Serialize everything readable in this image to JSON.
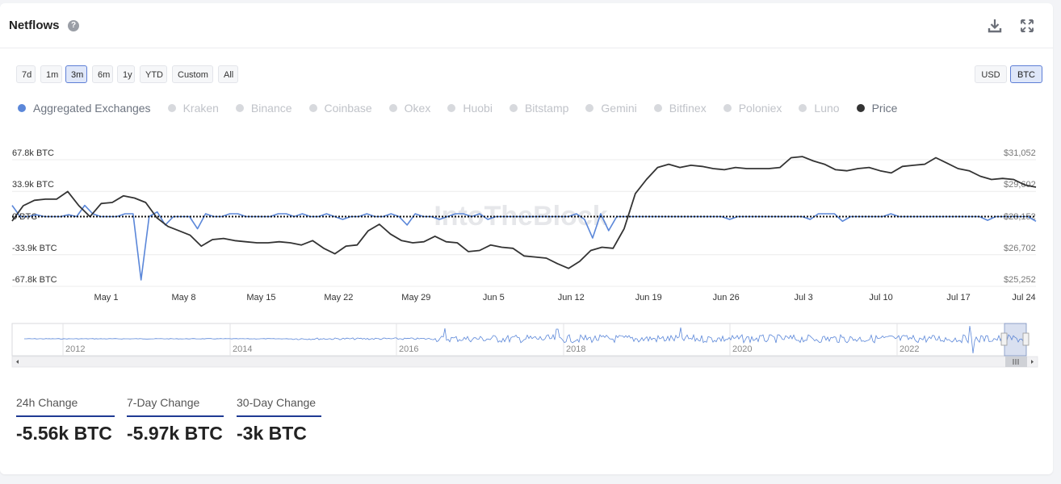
{
  "header": {
    "title": "Netflows",
    "help_icon": "question-circle-icon",
    "download_icon": "download-icon",
    "expand_icon": "expand-icon"
  },
  "range_buttons": [
    {
      "label": "7d",
      "active": false
    },
    {
      "label": "1m",
      "active": false
    },
    {
      "label": "3m",
      "active": true
    },
    {
      "label": "6m",
      "active": false
    },
    {
      "label": "1y",
      "active": false
    },
    {
      "label": "YTD",
      "active": false
    },
    {
      "label": "Custom",
      "active": false
    },
    {
      "label": "All",
      "active": false
    }
  ],
  "currency_buttons": [
    {
      "label": "USD",
      "active": false
    },
    {
      "label": "BTC",
      "active": true
    }
  ],
  "legend": [
    {
      "label": "Aggregated Exchanges",
      "state": "on-blue"
    },
    {
      "label": "Kraken",
      "state": "off"
    },
    {
      "label": "Binance",
      "state": "off"
    },
    {
      "label": "Coinbase",
      "state": "off"
    },
    {
      "label": "Okex",
      "state": "off"
    },
    {
      "label": "Huobi",
      "state": "off"
    },
    {
      "label": "Bitstamp",
      "state": "off"
    },
    {
      "label": "Gemini",
      "state": "off"
    },
    {
      "label": "Bitfinex",
      "state": "off"
    },
    {
      "label": "Poloniex",
      "state": "off"
    },
    {
      "label": "Luno",
      "state": "off"
    },
    {
      "label": "Price",
      "state": "on-dark"
    }
  ],
  "watermark": "IntoTheBlock",
  "chart_data": {
    "type": "line",
    "colors": {
      "netflow": "#5b87d9",
      "price": "#333333"
    },
    "left_axis": {
      "ticks": [
        "67.8k BTC",
        "33.9k BTC",
        "0 BTC",
        "-33.9k BTC",
        "-67.8k BTC"
      ],
      "values": [
        67800,
        33900,
        0,
        -33900,
        -67800
      ],
      "ylim": [
        -67800,
        67800
      ]
    },
    "right_axis": {
      "ticks": [
        "$31,052",
        "$29,602",
        "$28,152",
        "$26,702",
        "$25,252"
      ],
      "values": [
        31052,
        29602,
        28152,
        26702,
        25252
      ],
      "ylim": [
        25252,
        31052
      ]
    },
    "x_tick_labels": [
      "May 1",
      "May 8",
      "May 15",
      "May 22",
      "May 29",
      "Jun 5",
      "Jun 12",
      "Jun 19",
      "Jun 26",
      "Jul 3",
      "Jul 10",
      "Jul 17",
      "Jul 24"
    ],
    "x_tick_day": [
      8,
      15,
      22,
      29,
      36,
      43,
      50,
      57,
      64,
      71,
      78,
      85,
      92
    ],
    "x_range_day": [
      -0.5,
      92
    ],
    "zero_line": "dotted",
    "series": [
      {
        "name": "Aggregated Exchanges",
        "axis": "left",
        "values": [
          12000,
          0,
          0,
          2000,
          0,
          0,
          0,
          2000,
          0,
          12000,
          3000,
          0,
          0,
          0,
          3000,
          3000,
          -67800,
          0,
          5000,
          -9000,
          0,
          0,
          0,
          -13000,
          3000,
          0,
          0,
          3000,
          3000,
          0,
          0,
          0,
          0,
          3000,
          3000,
          0,
          3000,
          0,
          0,
          3000,
          0,
          -3000,
          0,
          0,
          3000,
          0,
          0,
          3000,
          0,
          -9000,
          3000,
          0,
          0,
          -3000,
          0,
          3000,
          3000,
          0,
          3000,
          -3000,
          0,
          0,
          0,
          0,
          0,
          0,
          0,
          0,
          0,
          0,
          3000,
          -3000,
          -23000,
          3000,
          -15000,
          0,
          0,
          0,
          0,
          0,
          0,
          0,
          0,
          0,
          0,
          0,
          0,
          0,
          0,
          -3000,
          0,
          0,
          0,
          0,
          0,
          0,
          0,
          0,
          0,
          -3000,
          3000,
          3000,
          3000,
          -5000,
          0,
          0,
          0,
          0,
          0,
          3000,
          0,
          0,
          0,
          0,
          0,
          0,
          0,
          0,
          0,
          0,
          0,
          -4000,
          0,
          0,
          0,
          0,
          0,
          -5000
        ]
      },
      {
        "name": "Price",
        "axis": "right",
        "values": [
          27950,
          28650,
          28900,
          28950,
          28950,
          29300,
          28650,
          28150,
          28750,
          28800,
          29100,
          29000,
          28800,
          28100,
          27700,
          27500,
          27300,
          26800,
          27100,
          27150,
          27050,
          27000,
          26950,
          26950,
          27000,
          26950,
          26850,
          27050,
          26700,
          26450,
          26800,
          26850,
          27500,
          27800,
          27350,
          27050,
          26950,
          27000,
          27250,
          27000,
          26950,
          26550,
          26600,
          26850,
          26750,
          26700,
          26350,
          26300,
          26250,
          26000,
          25780,
          26100,
          26600,
          26750,
          26700,
          27600,
          29200,
          29850,
          30400,
          30550,
          30400,
          30500,
          30450,
          30350,
          30300,
          30400,
          30350,
          30350,
          30350,
          30400,
          30850,
          30900,
          30700,
          30550,
          30300,
          30250,
          30350,
          30400,
          30250,
          30150,
          30450,
          30500,
          30550,
          30850,
          30600,
          30350,
          30250,
          30000,
          29850,
          29900,
          29850,
          29600,
          29500
        ]
      }
    ]
  },
  "navigator": {
    "years": [
      "2012",
      "2014",
      "2016",
      "2018",
      "2020",
      "2022"
    ],
    "scroll_icon": "grip-lines-icon"
  },
  "stats": [
    {
      "label": "24h Change",
      "value": "-5.56k BTC"
    },
    {
      "label": "7-Day Change",
      "value": "-5.97k BTC"
    },
    {
      "label": "30-Day Change",
      "value": "-3k BTC"
    }
  ]
}
